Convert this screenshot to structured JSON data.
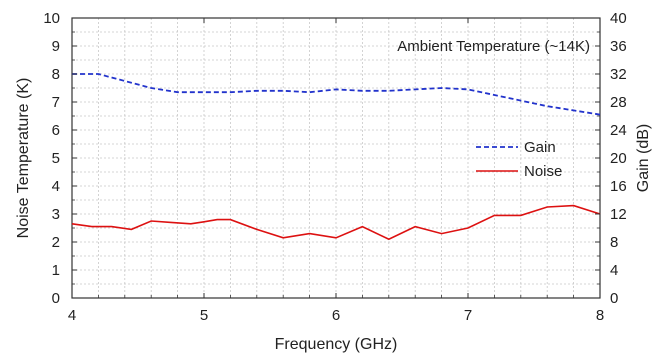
{
  "chart_data": {
    "type": "line",
    "annotation": "Ambient Temperature (~14K)",
    "xlabel": "Frequency (GHz)",
    "ylabel_left": "Noise Temperature (K)",
    "ylabel_right": "Gain (dB)",
    "xlim": [
      4,
      8
    ],
    "ylim_left": [
      0,
      10
    ],
    "ylim_right": [
      0,
      40
    ],
    "x_ticks": [
      4,
      5,
      6,
      7,
      8
    ],
    "y_ticks_left": [
      0,
      1,
      2,
      3,
      4,
      5,
      6,
      7,
      8,
      9,
      10
    ],
    "y_ticks_right": [
      0,
      4,
      8,
      12,
      16,
      20,
      24,
      28,
      32,
      36,
      40
    ],
    "grid": true,
    "legend_position": "right",
    "series": [
      {
        "name": "Gain",
        "axis": "right",
        "color": "#2233cc",
        "style": "dashed",
        "x": [
          4.0,
          4.2,
          4.4,
          4.6,
          4.8,
          5.0,
          5.2,
          5.4,
          5.6,
          5.8,
          6.0,
          6.2,
          6.4,
          6.6,
          6.8,
          7.0,
          7.2,
          7.4,
          7.6,
          7.8,
          8.0
        ],
        "y": [
          32.0,
          32.0,
          31.0,
          30.0,
          29.4,
          29.4,
          29.4,
          29.6,
          29.6,
          29.4,
          29.8,
          29.6,
          29.6,
          29.8,
          30.0,
          29.8,
          29.0,
          28.2,
          27.4,
          26.8,
          26.2
        ]
      },
      {
        "name": "Noise",
        "axis": "left",
        "color": "#dd1111",
        "style": "solid",
        "x": [
          4.0,
          4.15,
          4.3,
          4.45,
          4.6,
          4.75,
          4.9,
          5.0,
          5.1,
          5.2,
          5.4,
          5.6,
          5.8,
          6.0,
          6.2,
          6.4,
          6.6,
          6.8,
          7.0,
          7.2,
          7.4,
          7.6,
          7.8,
          8.0
        ],
        "y": [
          2.65,
          2.55,
          2.55,
          2.45,
          2.75,
          2.7,
          2.65,
          2.72,
          2.8,
          2.8,
          2.45,
          2.15,
          2.3,
          2.15,
          2.55,
          2.1,
          2.55,
          2.3,
          2.5,
          2.95,
          2.95,
          3.25,
          3.3,
          3.0
        ]
      }
    ]
  }
}
